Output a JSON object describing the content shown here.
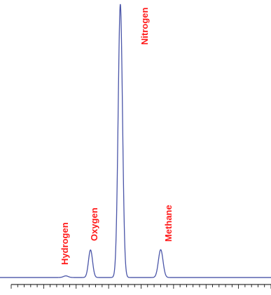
{
  "chart_data": {
    "type": "line",
    "title": "",
    "xlabel": "",
    "ylabel": "",
    "line_color": "#4a55a8",
    "label_color": "#ff1a1a",
    "axis_color": "#000000",
    "grid": false,
    "x_range": [
      0,
      100
    ],
    "y_range": [
      0,
      100
    ],
    "baseline": 0.5,
    "peaks": [
      {
        "name": "Hydrogen",
        "x": 24.3,
        "height": 0.6,
        "width": 0.9
      },
      {
        "name": "Oxygen",
        "x": 33.4,
        "height": 10.1,
        "width": 0.75
      },
      {
        "name": "Nitrogen",
        "x": 44.4,
        "height": 100,
        "width": 0.8
      },
      {
        "name": "Methane",
        "x": 59.3,
        "height": 10.2,
        "width": 0.85
      }
    ]
  }
}
